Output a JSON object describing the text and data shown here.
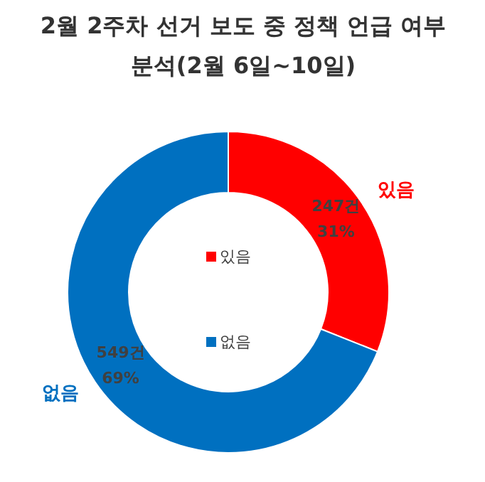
{
  "chart_data": {
    "type": "donut",
    "title": "2월 2주차 선거 보도 중 정책 언급 여부\n분석(2월 6일~10일)",
    "categories": [
      "있음",
      "없음"
    ],
    "values": [
      247,
      549
    ],
    "colors": [
      "#ff0000",
      "#0070c0"
    ],
    "value_labels": [
      "247건\n31%",
      "549건\n69%"
    ],
    "legend": "center"
  }
}
